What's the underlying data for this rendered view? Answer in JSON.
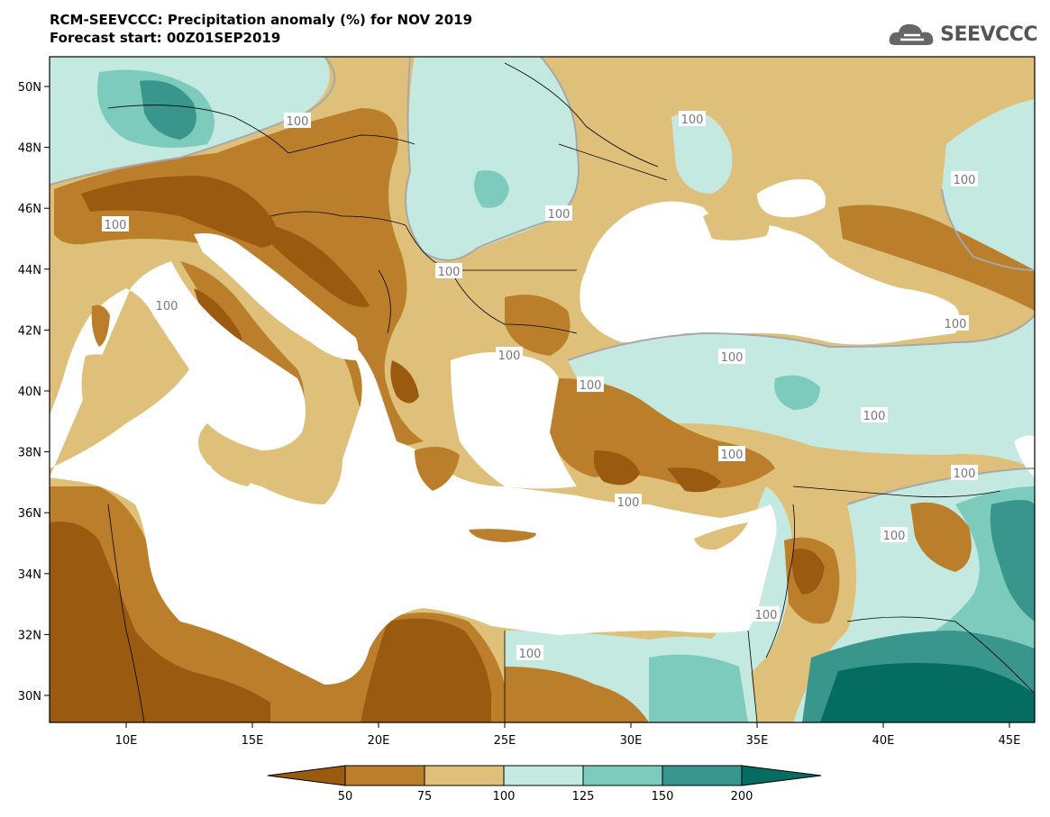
{
  "header": {
    "title_line1": "RCM-SEEVCCC: Precipitation anomaly (%) for NOV 2019",
    "title_line2": "Forecast start: 00Z01SEP2019",
    "logo_text": "SEEVCCC"
  },
  "map": {
    "lat_labels": [
      "50N",
      "48N",
      "46N",
      "44N",
      "42N",
      "40N",
      "38N",
      "36N",
      "34N",
      "32N",
      "30N"
    ],
    "lon_labels": [
      "10E",
      "15E",
      "20E",
      "25E",
      "30E",
      "35E",
      "40E",
      "45E"
    ],
    "contour_labels": [
      "100",
      "100",
      "100",
      "100",
      "100",
      "100",
      "100",
      "100",
      "100",
      "100",
      "100",
      "100",
      "100",
      "100",
      "100",
      "100",
      "100",
      "100"
    ]
  },
  "legend": {
    "ticks": [
      "50",
      "75",
      "100",
      "125",
      "150",
      "200"
    ],
    "colors": [
      "#9a5a10",
      "#bb7f2c",
      "#dec07a",
      "#c4e9e1",
      "#7dcbbc",
      "#38968d",
      "#056c61"
    ]
  },
  "colors": {
    "very_dry": "#9a5a10",
    "dry": "#bb7f2c",
    "slightly_dry": "#dec07a",
    "slightly_wet": "#c4e9e1",
    "wet": "#7dcbbc",
    "very_wet": "#38968d",
    "extreme_wet": "#056c61",
    "sea": "#ffffff",
    "border": "#000000"
  }
}
